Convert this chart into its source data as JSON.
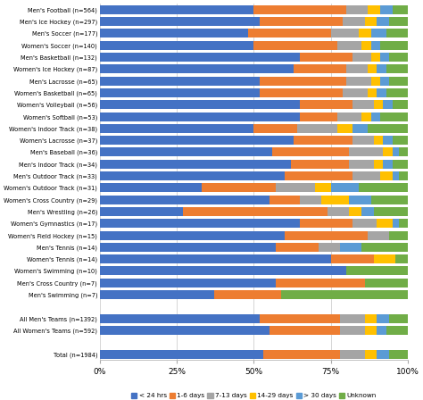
{
  "categories": [
    "Men's Football (n=564)",
    "Men's Ice Hockey (n=297)",
    "Men's Soccer (n=177)",
    "Women's Soccer (n=140)",
    "Men's Basketball (n=132)",
    "Women's Ice Hockey (n=87)",
    "Men's Lacrosse (n=65)",
    "Women's Basketball (n=65)",
    "Women's Volleyball (n=56)",
    "Women's Softball (n=53)",
    "Women's Indoor Track (n=38)",
    "Women's Lacrosse (n=37)",
    "Men's Baseball (n=36)",
    "Men's Indoor Track (n=34)",
    "Men's Outdoor Track (n=33)",
    "Women's Outdoor Track (n=31)",
    "Women's Cross Country (n=29)",
    "Men's Wrestling (n=26)",
    "Women's Gymnastics (n=17)",
    "Women's Field Hockey (n=15)",
    "Men's Tennis (n=14)",
    "Women's Tennis (n=14)",
    "Women's Swimming (n=10)",
    "Men's Cross Country (n=7)",
    "Men's Swimming (n=7)",
    "",
    "All Men's Teams (n=1392)",
    "All Women's Teams (n=592)",
    "",
    "Total (n=1984)"
  ],
  "series": {
    "< 24 hrs": [
      50,
      52,
      48,
      50,
      65,
      63,
      52,
      52,
      65,
      65,
      50,
      63,
      56,
      62,
      60,
      33,
      55,
      27,
      65,
      60,
      57,
      75,
      80,
      57,
      37,
      0,
      52,
      55,
      0,
      53
    ],
    "1-6 days": [
      30,
      27,
      27,
      27,
      17,
      17,
      28,
      27,
      17,
      12,
      14,
      19,
      25,
      19,
      22,
      24,
      10,
      47,
      17,
      27,
      14,
      14,
      0,
      29,
      22,
      0,
      26,
      23,
      0,
      25
    ],
    "7-13 days": [
      7,
      7,
      9,
      8,
      6,
      7,
      8,
      8,
      7,
      8,
      13,
      7,
      11,
      8,
      9,
      13,
      7,
      7,
      8,
      7,
      7,
      0,
      0,
      0,
      0,
      0,
      8,
      8,
      0,
      8
    ],
    "14-29 days": [
      4,
      4,
      4,
      3,
      3,
      3,
      3,
      3,
      3,
      3,
      5,
      3,
      3,
      3,
      4,
      5,
      9,
      4,
      5,
      0,
      0,
      7,
      0,
      0,
      0,
      0,
      4,
      4,
      0,
      4
    ],
    "> 30 days": [
      4,
      4,
      5,
      3,
      3,
      3,
      3,
      3,
      3,
      3,
      5,
      3,
      2,
      3,
      2,
      9,
      7,
      4,
      2,
      0,
      7,
      0,
      0,
      0,
      0,
      0,
      4,
      3,
      0,
      4
    ],
    "Unknown": [
      5,
      6,
      7,
      9,
      6,
      7,
      6,
      7,
      5,
      9,
      13,
      5,
      3,
      5,
      3,
      16,
      12,
      11,
      3,
      6,
      15,
      4,
      20,
      14,
      41,
      0,
      6,
      7,
      0,
      6
    ]
  },
  "colors": {
    "< 24 hrs": "#4472c4",
    "1-6 days": "#ed7d31",
    "7-13 days": "#a5a5a5",
    "14-29 days": "#ffc000",
    "> 30 days": "#5b9bd5",
    "Unknown": "#70ad47"
  },
  "legend_order": [
    "< 24 hrs",
    "1-6 days",
    "7-13 days",
    "14-29 days",
    "> 30 days",
    "Unknown"
  ],
  "background_color": "#ffffff",
  "grid_color": "#ffffff",
  "xlim": [
    0,
    100
  ],
  "figsize": [
    4.74,
    4.48
  ],
  "dpi": 100
}
